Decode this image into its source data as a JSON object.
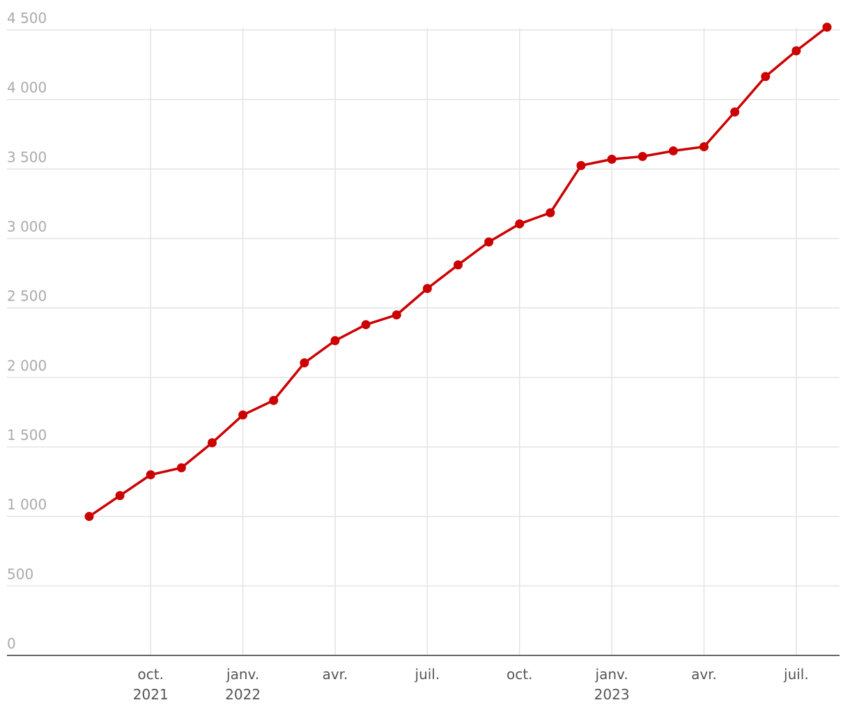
{
  "chart_data": {
    "type": "line",
    "x": [
      "2021-08",
      "2021-09",
      "2021-10",
      "2021-11",
      "2021-12",
      "2022-01",
      "2022-02",
      "2022-03",
      "2022-04",
      "2022-05",
      "2022-06",
      "2022-07",
      "2022-08",
      "2022-09",
      "2022-10",
      "2022-11",
      "2022-12",
      "2023-01",
      "2023-02",
      "2023-03",
      "2023-04",
      "2023-05",
      "2023-06",
      "2023-07",
      "2023-08"
    ],
    "series": [
      {
        "color": "#cc0000",
        "values": [
          1000,
          1150,
          1300,
          1350,
          1530,
          1730,
          1835,
          2105,
          2265,
          2380,
          2450,
          2640,
          2810,
          2975,
          3105,
          3185,
          3525,
          3570,
          3590,
          3630,
          3660,
          3910,
          4165,
          4350,
          4520
        ]
      }
    ],
    "ylim": [
      0,
      4500
    ],
    "yticks": [
      0,
      500,
      {
        "value": 1000,
        "label": "1 000"
      },
      {
        "value": 1500,
        "label": "1 500"
      },
      {
        "value": 2000,
        "label": "2 000"
      },
      {
        "value": 2500,
        "label": "2 500"
      },
      {
        "value": 3000,
        "label": "3 000"
      },
      {
        "value": 3500,
        "label": "3 500"
      },
      {
        "value": 4000,
        "label": "4 000"
      },
      {
        "value": 4500,
        "label": "4 500"
      }
    ],
    "xticks": [
      {
        "value": "2021-10",
        "label": "oct.",
        "sublabel": "2021"
      },
      {
        "value": "2022-01",
        "label": "janv.",
        "sublabel": "2022"
      },
      {
        "value": "2022-04",
        "label": "avr."
      },
      {
        "value": "2022-07",
        "label": "juil."
      },
      {
        "value": "2022-10",
        "label": "oct."
      },
      {
        "value": "2023-01",
        "label": "janv.",
        "sublabel": "2023"
      },
      {
        "value": "2023-04",
        "label": "avr."
      },
      {
        "value": "2023-07",
        "label": "juil."
      }
    ],
    "grid": true
  }
}
